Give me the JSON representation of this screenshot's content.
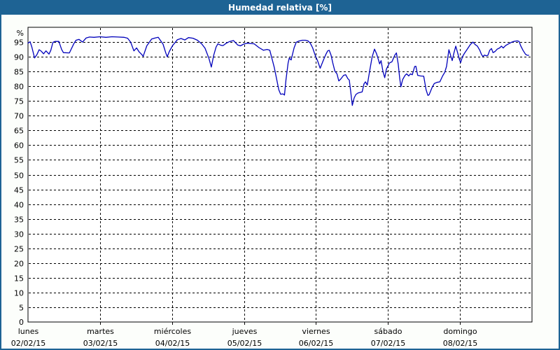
{
  "title": "Humedad relativa [%]",
  "colors": {
    "titlebar_bg": "#1e6394",
    "window_border": "#1e6394",
    "content_bg": "#fcfefb",
    "plot_bg": "#ffffff",
    "grid": "#000000",
    "line": "#0000bb",
    "title_text": "#ffffff",
    "tick_text": "#000000"
  },
  "chart_data": {
    "type": "line",
    "title": "Humedad relativa [%]",
    "ylabel": "%",
    "unit_label": "%",
    "zero_label": "0",
    "ylim": [
      0,
      100
    ],
    "y_ticks": [
      95,
      90,
      85,
      80,
      75,
      70,
      65,
      60,
      55,
      50,
      45,
      40,
      35,
      30,
      25,
      20,
      15,
      10,
      5
    ],
    "grid": "dashed",
    "line_color": "#0000bb",
    "x_axis": {
      "range_hours": [
        0,
        168
      ],
      "days": [
        {
          "name": "lunes",
          "date": "02/02/15"
        },
        {
          "name": "martes",
          "date": "03/02/15"
        },
        {
          "name": "miércoles",
          "date": "04/02/15"
        },
        {
          "name": "jueves",
          "date": "05/02/15"
        },
        {
          "name": "viernes",
          "date": "06/02/15"
        },
        {
          "name": "sábado",
          "date": "07/02/15"
        },
        {
          "name": "domingo",
          "date": "08/02/15"
        }
      ]
    },
    "series": [
      {
        "name": "Humedad relativa",
        "unit": "%",
        "x_unit": "hours from lunes 02/02/15 00:00",
        "points": [
          [
            0,
            94.6
          ],
          [
            0.7,
            95.1
          ],
          [
            1.3,
            93.2
          ],
          [
            2.2,
            89.6
          ],
          [
            3,
            90.8
          ],
          [
            3.7,
            92.4
          ],
          [
            4.4,
            91.9
          ],
          [
            5.2,
            91
          ],
          [
            6,
            92
          ],
          [
            7,
            90.9
          ],
          [
            7.6,
            92.2
          ],
          [
            8.3,
            94.9
          ],
          [
            9,
            95.2
          ],
          [
            10.3,
            95.2
          ],
          [
            11.2,
            92.5
          ],
          [
            11.8,
            91.4
          ],
          [
            13.8,
            91.3
          ],
          [
            15.3,
            94.5
          ],
          [
            16,
            95.6
          ],
          [
            17,
            95.9
          ],
          [
            18.2,
            95
          ],
          [
            19.4,
            96.4
          ],
          [
            20.5,
            96.7
          ],
          [
            22,
            96.6
          ],
          [
            24,
            96.8
          ],
          [
            26,
            96.6
          ],
          [
            28,
            96.8
          ],
          [
            30,
            96.7
          ],
          [
            32,
            96.6
          ],
          [
            33.2,
            96.3
          ],
          [
            34.2,
            95
          ],
          [
            35.3,
            92
          ],
          [
            36.2,
            93
          ],
          [
            37,
            91.7
          ],
          [
            37.7,
            91
          ],
          [
            38.4,
            90.2
          ],
          [
            39.6,
            93.7
          ],
          [
            41.2,
            96
          ],
          [
            42.4,
            96.4
          ],
          [
            43.4,
            96.6
          ],
          [
            45,
            94.3
          ],
          [
            45.9,
            91.4
          ],
          [
            46.4,
            90
          ],
          [
            47.1,
            91.8
          ],
          [
            48.2,
            93.8
          ],
          [
            49.8,
            95.8
          ],
          [
            51,
            96.2
          ],
          [
            52.3,
            95.7
          ],
          [
            53.5,
            96.5
          ],
          [
            55,
            96.3
          ],
          [
            56.5,
            95.6
          ],
          [
            57.9,
            94.4
          ],
          [
            59,
            92.9
          ],
          [
            60.3,
            89.5
          ],
          [
            61.1,
            86.5
          ],
          [
            61.9,
            90.5
          ],
          [
            62.7,
            93.3
          ],
          [
            63.3,
            94.4
          ],
          [
            64.3,
            93.9
          ],
          [
            65,
            93.8
          ],
          [
            66.1,
            94.6
          ],
          [
            67.3,
            95.2
          ],
          [
            68.5,
            95.5
          ],
          [
            69.9,
            94
          ],
          [
            70.8,
            93.7
          ],
          [
            71.9,
            94.3
          ],
          [
            73,
            94.6
          ],
          [
            75.4,
            94.4
          ],
          [
            77,
            93.1
          ],
          [
            78.5,
            92.2
          ],
          [
            79.7,
            92.5
          ],
          [
            80.6,
            92.2
          ],
          [
            81.3,
            89.5
          ],
          [
            82.1,
            86.3
          ],
          [
            82.9,
            82.3
          ],
          [
            83.6,
            78.8
          ],
          [
            84.2,
            77.3
          ],
          [
            85,
            77.4
          ],
          [
            85.5,
            77
          ],
          [
            86,
            82.3
          ],
          [
            86.7,
            87.9
          ],
          [
            87.1,
            89.6
          ],
          [
            87.7,
            88.9
          ],
          [
            88.7,
            93
          ],
          [
            89.4,
            94.9
          ],
          [
            90.2,
            95.3
          ],
          [
            91.4,
            95.6
          ],
          [
            92.5,
            95.6
          ],
          [
            93.3,
            95.4
          ],
          [
            94.1,
            94.6
          ],
          [
            94.9,
            93
          ],
          [
            95.7,
            90.6
          ],
          [
            96.5,
            88.7
          ],
          [
            97.4,
            86.1
          ],
          [
            98.4,
            88.7
          ],
          [
            99.2,
            90.6
          ],
          [
            99.9,
            92
          ],
          [
            100.4,
            92.2
          ],
          [
            101,
            90.6
          ],
          [
            101.6,
            87.9
          ],
          [
            102.3,
            85.1
          ],
          [
            103,
            84.2
          ],
          [
            103.6,
            81.8
          ],
          [
            104.2,
            82.4
          ],
          [
            105.2,
            83.7
          ],
          [
            105.9,
            83.9
          ],
          [
            106.6,
            82.6
          ],
          [
            107.1,
            82.1
          ],
          [
            107.6,
            78
          ],
          [
            108.1,
            73.5
          ],
          [
            108.7,
            76
          ],
          [
            109.3,
            77.2
          ],
          [
            110,
            77.7
          ],
          [
            111.4,
            78.1
          ],
          [
            112,
            80.8
          ],
          [
            112.5,
            81.5
          ],
          [
            113.1,
            80.4
          ],
          [
            114,
            85.9
          ],
          [
            114.7,
            89.9
          ],
          [
            115.5,
            92.6
          ],
          [
            116.2,
            91
          ],
          [
            116.8,
            89
          ],
          [
            117.2,
            87.6
          ],
          [
            117.7,
            88.7
          ],
          [
            118.3,
            85.1
          ],
          [
            118.9,
            82.9
          ],
          [
            119.5,
            85.9
          ],
          [
            120,
            86.9
          ],
          [
            120.5,
            87.9
          ],
          [
            121.3,
            88.3
          ],
          [
            122.3,
            90.6
          ],
          [
            122.8,
            91.3
          ],
          [
            123.4,
            87.5
          ],
          [
            123.9,
            82.7
          ],
          [
            124.3,
            79.8
          ],
          [
            124.9,
            82.3
          ],
          [
            125.7,
            83.7
          ],
          [
            126.2,
            84.2
          ],
          [
            126.9,
            83.5
          ],
          [
            127.5,
            84.2
          ],
          [
            128.1,
            83.9
          ],
          [
            128.9,
            86.7
          ],
          [
            129.3,
            86.8
          ],
          [
            129.9,
            83.7
          ],
          [
            130.8,
            83.5
          ],
          [
            131.9,
            83.4
          ],
          [
            132.7,
            78.8
          ],
          [
            133.3,
            76.9
          ],
          [
            133.7,
            77.1
          ],
          [
            134.7,
            79.6
          ],
          [
            135.4,
            80.9
          ],
          [
            136.3,
            81.3
          ],
          [
            137.3,
            81.5
          ],
          [
            138.2,
            83.5
          ],
          [
            138.9,
            84.7
          ],
          [
            139.5,
            86.7
          ],
          [
            140.3,
            92.4
          ],
          [
            140.9,
            90.3
          ],
          [
            141.4,
            88.7
          ],
          [
            142,
            91.4
          ],
          [
            142.6,
            93.6
          ],
          [
            143.2,
            91.4
          ],
          [
            143.8,
            89.1
          ],
          [
            144.2,
            88
          ],
          [
            144.8,
            90
          ],
          [
            145.5,
            91.2
          ],
          [
            146.3,
            92.4
          ],
          [
            147.5,
            94.2
          ],
          [
            148.3,
            95
          ],
          [
            149.1,
            94.1
          ],
          [
            149.8,
            93.6
          ],
          [
            150.6,
            92.2
          ],
          [
            151.1,
            90.9
          ],
          [
            151.6,
            90.1
          ],
          [
            152.2,
            90.6
          ],
          [
            152.7,
            90.3
          ],
          [
            153.3,
            90.5
          ],
          [
            153.9,
            92.2
          ],
          [
            154.5,
            92.8
          ],
          [
            155,
            91.4
          ],
          [
            155.7,
            91.8
          ],
          [
            156.4,
            92.6
          ],
          [
            157.2,
            93
          ],
          [
            157.8,
            93.6
          ],
          [
            158.4,
            93
          ],
          [
            159.2,
            93.8
          ],
          [
            160.2,
            94.4
          ],
          [
            161.1,
            94.9
          ],
          [
            161.9,
            95.2
          ],
          [
            163.1,
            95.4
          ],
          [
            163.7,
            95.2
          ],
          [
            164.2,
            93.8
          ],
          [
            165,
            92.2
          ],
          [
            165.8,
            90.9
          ],
          [
            166.4,
            90.5
          ],
          [
            166.9,
            90.5
          ]
        ]
      }
    ]
  }
}
